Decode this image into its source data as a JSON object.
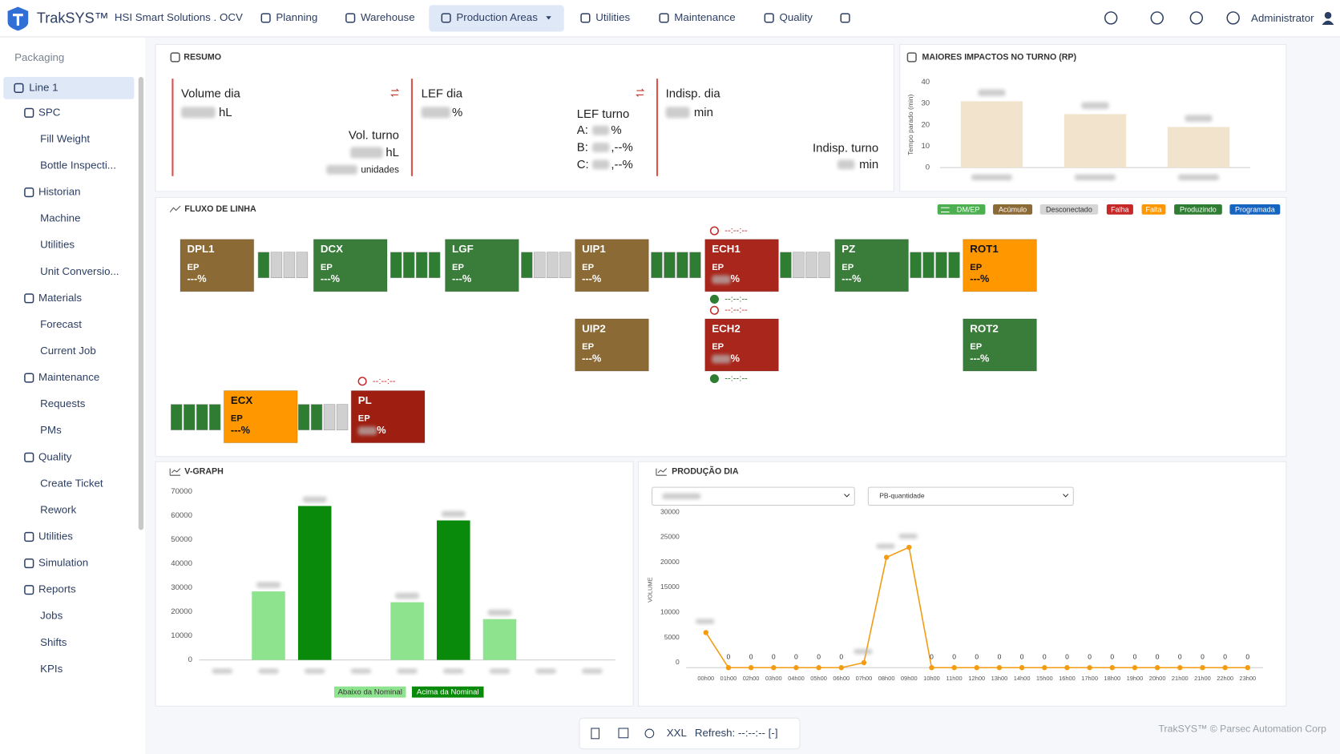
{
  "nav": {
    "brand": "TrakSYS™",
    "site": "HSI Smart Solutions . OCV",
    "items": [
      "Planning",
      "Warehouse",
      "Production Areas",
      "Utilities",
      "Maintenance",
      "Quality"
    ],
    "user": "Administrator"
  },
  "sidebar": {
    "heading": "Packaging",
    "selected": "Line 1",
    "groups": [
      {
        "label": "SPC",
        "items": [
          "Fill Weight",
          "Bottle Inspecti..."
        ]
      },
      {
        "label": "Historian",
        "items": [
          "Machine",
          "Utilities",
          "Unit Conversio..."
        ]
      },
      {
        "label": "Materials",
        "items": [
          "Forecast",
          "Current Job"
        ]
      },
      {
        "label": "Maintenance",
        "items": [
          "Requests",
          "PMs"
        ]
      },
      {
        "label": "Quality",
        "items": [
          "Create Ticket",
          "Rework"
        ]
      },
      {
        "label": "Utilities",
        "items": []
      },
      {
        "label": "Simulation",
        "items": []
      },
      {
        "label": "Reports",
        "items": [
          "Jobs",
          "Shifts",
          "KPIs"
        ]
      }
    ]
  },
  "resumo": {
    "title": "RESUMO",
    "volume": {
      "label": "Volume dia",
      "unit": "hL",
      "shift_label": "Vol. turno",
      "shift_unit": "hL",
      "count_unit": "unidades"
    },
    "lef": {
      "label": "LEF dia",
      "unit": "%",
      "shift_label": "LEF turno",
      "shifts": [
        {
          "name": "A:",
          "suffix": "%"
        },
        {
          "name": "B:",
          "suffix": ",--%"
        },
        {
          "name": "C:",
          "suffix": ",--%"
        }
      ]
    },
    "indisp": {
      "label": "Indisp. dia",
      "unit": "min",
      "shift_label": "Indisp. turno",
      "shift_unit": "min"
    }
  },
  "flow": {
    "title": "FLUXO DE LINHA",
    "legend": [
      {
        "label": "DM/EP",
        "color": "#4caf50"
      },
      {
        "label": "Acúmulo",
        "color": "#8c6a35"
      },
      {
        "label": "Desconectado",
        "color": "#d6d6d6"
      },
      {
        "label": "Falha",
        "color": "#c62828"
      },
      {
        "label": "Falta",
        "color": "#ff9800"
      },
      {
        "label": "Produzindo",
        "color": "#2e7d32"
      },
      {
        "label": "Programada",
        "color": "#1565c0"
      }
    ],
    "nodes": [
      {
        "label": "DPL1",
        "mode": "EP",
        "pct": "---%",
        "color": "#8c6a35"
      },
      {
        "label": "DCX",
        "mode": "EP",
        "pct": "---%",
        "color": "#3a7d3a"
      },
      {
        "label": "LGF",
        "mode": "EP",
        "pct": "---%",
        "color": "#3a7d3a"
      },
      {
        "label": "UIP1",
        "mode": "EP",
        "pct": "---%",
        "color": "#8c6a35"
      },
      {
        "label": "ECH1",
        "mode": "EP",
        "pct": "%",
        "color": "#a8261c"
      },
      {
        "label": "PZ",
        "mode": "EP",
        "pct": "---%",
        "color": "#3a7d3a"
      },
      {
        "label": "ROT1",
        "mode": "EP",
        "pct": "---%",
        "color": "#ff9800"
      },
      {
        "label": "UIP2",
        "mode": "EP",
        "pct": "---%",
        "color": "#8c6a35"
      },
      {
        "label": "ECH2",
        "mode": "EP",
        "pct": "%",
        "color": "#a8261c"
      },
      {
        "label": "ROT2",
        "mode": "EP",
        "pct": "---%",
        "color": "#3a7d3a"
      },
      {
        "label": "ECX",
        "mode": "EP",
        "pct": "---%",
        "color": "#ff9800"
      },
      {
        "label": "PL",
        "mode": "EP",
        "pct": "%",
        "color": "#9e1f12"
      }
    ],
    "timers": [
      "--:--:--",
      "--:--:--",
      "--:--:--",
      "--:--:--",
      "--:--:--"
    ]
  },
  "chart_data": [
    {
      "type": "bar",
      "title": "MAIORES IMPACTOS NO TURNO (RP)",
      "y_label": "Tempo parado (min)",
      "categories": [
        null,
        null,
        null
      ],
      "values": [
        31,
        25,
        19
      ],
      "color": "#f2e3cc",
      "ylim": [
        0,
        40
      ],
      "yticks": [
        0,
        10,
        20,
        30,
        40
      ],
      "grid": false
    },
    {
      "type": "bar",
      "title": "V-GRAPH",
      "categories": [
        null,
        null,
        null,
        null,
        null,
        null,
        null,
        null,
        null
      ],
      "series": [
        {
          "name": "Abaixo da Nominal",
          "color": "#8ee38e",
          "values": [
            null,
            28500,
            null,
            null,
            24000,
            null,
            17000,
            null,
            null
          ]
        },
        {
          "name": "Acima da Nominal",
          "color": "#0a8a0a",
          "values": [
            null,
            null,
            64000,
            null,
            null,
            58000,
            null,
            null,
            null
          ]
        }
      ],
      "ylim": [
        0,
        70000
      ],
      "yticks": [
        0,
        10000,
        20000,
        30000,
        40000,
        50000,
        60000,
        70000
      ],
      "grid": false
    },
    {
      "type": "line",
      "title": "PRODUÇÃO DIA",
      "y_label": "VOLUME",
      "dropdown": "PB-quantidade",
      "categories": [
        "00h00",
        "01h00",
        "02h00",
        "03h00",
        "04h00",
        "05h00",
        "06h00",
        "07h00",
        "08h00",
        "09h00",
        "10h00",
        "11h00",
        "12h00",
        "13h00",
        "14h00",
        "15h00",
        "16h00",
        "17h00",
        "18h00",
        "19h00",
        "20h00",
        "21h00",
        "21h00",
        "22h00",
        "23h00"
      ],
      "values": [
        7000,
        0,
        0,
        0,
        0,
        0,
        0,
        1000,
        22000,
        24000,
        0,
        0,
        0,
        0,
        0,
        0,
        0,
        0,
        0,
        0,
        0,
        0,
        0,
        0,
        0
      ],
      "color": "#f39c12",
      "ylim": [
        0,
        30000
      ],
      "yticks": [
        0,
        5000,
        10000,
        15000,
        20000,
        25000,
        30000
      ],
      "grid": false
    }
  ],
  "footer": {
    "size": "XXL",
    "refresh": "Refresh: --:--:-- [-]",
    "copyright": "TrakSYS™ © Parsec Automation Corp"
  }
}
